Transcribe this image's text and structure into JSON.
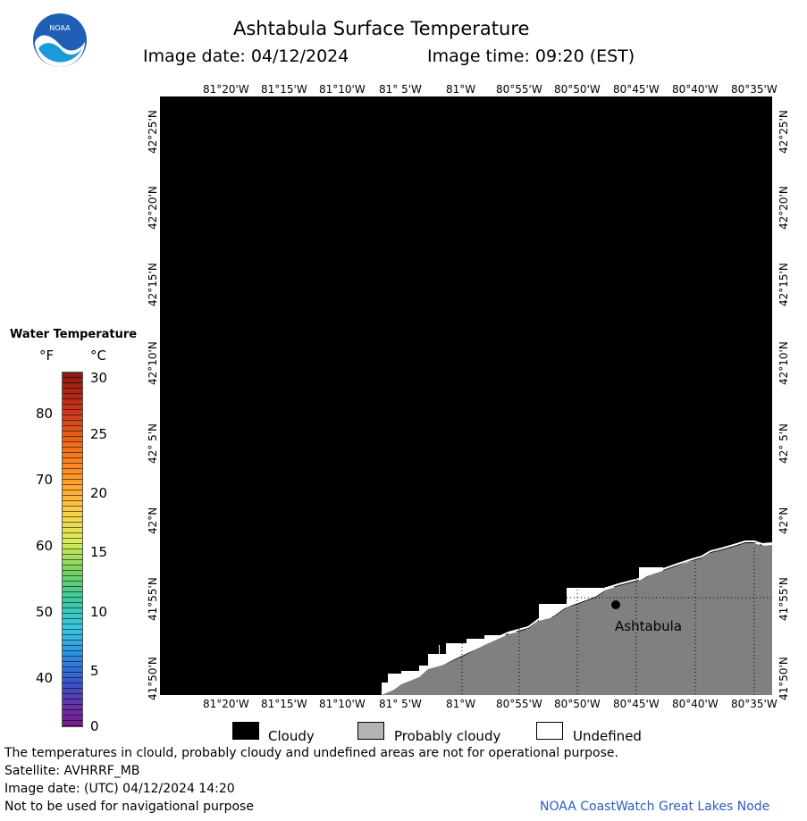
{
  "header": {
    "title": "Ashtabula Surface Temperature",
    "image_date_label": "Image date: 04/12/2024",
    "image_time_label": "Image time: 09:20 (EST)"
  },
  "logo": {
    "text": "NOAA"
  },
  "map": {
    "lon_labels": [
      "81°20'W",
      "81°15'W",
      "81°10'W",
      "81° 5'W",
      "81°W",
      "80°55'W",
      "80°50'W",
      "80°45'W",
      "80°40'W",
      "80°35'W"
    ],
    "lat_labels": [
      "42°25'N",
      "42°20'N",
      "42°15'N",
      "42°10'N",
      "42° 5'N",
      "42°N",
      "41°55'N",
      "41°50'N"
    ],
    "place_label": "Ashtabula",
    "colors": {
      "cloudy": "#000000",
      "probably_cloudy": "#7f7f7f",
      "undefined": "#ffffff"
    }
  },
  "legend": {
    "title": "Water Temperature",
    "unit_f": "°F",
    "unit_c": "°C",
    "f_ticks": [
      "80",
      "70",
      "60",
      "50",
      "40"
    ],
    "c_ticks": [
      "30",
      "25",
      "20",
      "15",
      "10",
      "5",
      "0"
    ]
  },
  "key": {
    "cloudy": "Cloudy",
    "probably_cloudy": "Probably cloudy",
    "undefined": "Undefined"
  },
  "footer": {
    "disclaimer": "The temperatures in clould, probably cloudy and undefined areas are not for operational purpose.",
    "satellite": "Satellite: AVHRRF_MB",
    "utc_date": "Image date: (UTC) 04/12/2024  14:20",
    "nav_warning": "Not to be used for navigational purpose",
    "credit": "NOAA CoastWatch Great Lakes Node"
  }
}
